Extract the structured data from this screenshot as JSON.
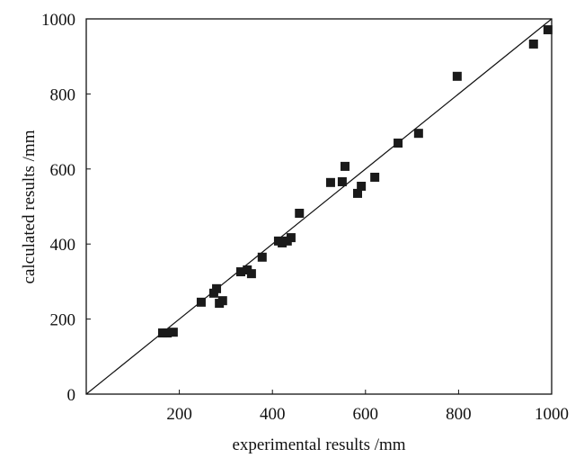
{
  "chart_data": {
    "type": "scatter",
    "xlabel": "experimental results /mm",
    "ylabel": "calculated results /mm",
    "xlim": [
      0,
      1000
    ],
    "ylim": [
      0,
      1000
    ],
    "xticks": [
      200,
      400,
      600,
      800,
      1000
    ],
    "yticks": [
      0,
      200,
      400,
      600,
      800,
      1000
    ],
    "grid": false,
    "marker": "square",
    "marker_color": "#1a1a1a",
    "reference_line": {
      "type": "y=x",
      "from": [
        0,
        0
      ],
      "to": [
        1000,
        1000
      ]
    },
    "points": [
      [
        164,
        163
      ],
      [
        174,
        163
      ],
      [
        187,
        165
      ],
      [
        247,
        245
      ],
      [
        274,
        269
      ],
      [
        280,
        281
      ],
      [
        286,
        242
      ],
      [
        293,
        249
      ],
      [
        332,
        326
      ],
      [
        346,
        331
      ],
      [
        355,
        321
      ],
      [
        378,
        365
      ],
      [
        413,
        408
      ],
      [
        421,
        403
      ],
      [
        432,
        408
      ],
      [
        440,
        417
      ],
      [
        458,
        482
      ],
      [
        525,
        564
      ],
      [
        550,
        566
      ],
      [
        556,
        607
      ],
      [
        583,
        535
      ],
      [
        591,
        554
      ],
      [
        620,
        578
      ],
      [
        670,
        669
      ],
      [
        714,
        695
      ],
      [
        797,
        847
      ],
      [
        961,
        933
      ],
      [
        992,
        971
      ]
    ]
  }
}
